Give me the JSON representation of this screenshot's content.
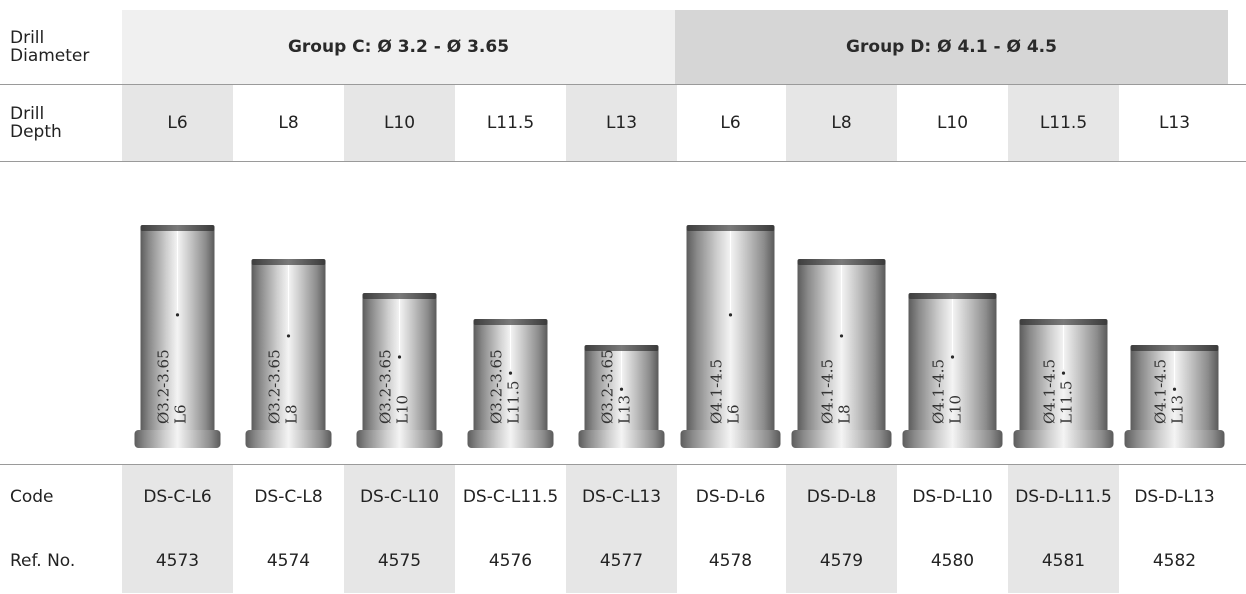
{
  "row_labels": {
    "diameter_line1": "Drill",
    "diameter_line2": "Diameter",
    "depth_line1": "Drill",
    "depth_line2": "Depth",
    "code": "Code",
    "ref": "Ref. No."
  },
  "groups": [
    {
      "label": "Group C:  Ø 3.2 - Ø 3.65"
    },
    {
      "label": "Group D:  Ø 4.1 - Ø 4.5"
    }
  ],
  "columns": [
    {
      "depth": "L6",
      "code": "DS-C-L6",
      "ref": "4573",
      "engrave_top": "Ø3.2-3.65",
      "engrave_bottom": "L6"
    },
    {
      "depth": "L8",
      "code": "DS-C-L8",
      "ref": "4574",
      "engrave_top": "Ø3.2-3.65",
      "engrave_bottom": "L8"
    },
    {
      "depth": "L10",
      "code": "DS-C-L10",
      "ref": "4575",
      "engrave_top": "Ø3.2-3.65",
      "engrave_bottom": "L10"
    },
    {
      "depth": "L11.5",
      "code": "DS-C-L11.5",
      "ref": "4576",
      "engrave_top": "Ø3.2-3.65",
      "engrave_bottom": "L11.5"
    },
    {
      "depth": "L13",
      "code": "DS-C-L13",
      "ref": "4577",
      "engrave_top": "Ø3.2-3.65",
      "engrave_bottom": "L13"
    },
    {
      "depth": "L6",
      "code": "DS-D-L6",
      "ref": "4578",
      "engrave_top": "Ø4.1-4.5",
      "engrave_bottom": "L6"
    },
    {
      "depth": "L8",
      "code": "DS-D-L8",
      "ref": "4579",
      "engrave_top": "Ø4.1-4.5",
      "engrave_bottom": "L8"
    },
    {
      "depth": "L10",
      "code": "DS-D-L10",
      "ref": "4580",
      "engrave_top": "Ø4.1-4.5",
      "engrave_bottom": "L10"
    },
    {
      "depth": "L11.5",
      "code": "DS-D-L11.5",
      "ref": "4581",
      "engrave_top": "Ø4.1-4.5",
      "engrave_bottom": "L11.5"
    },
    {
      "depth": "L13",
      "code": "DS-D-L13",
      "ref": "4582",
      "engrave_top": "Ø4.1-4.5",
      "engrave_bottom": "L13"
    }
  ],
  "colors": {
    "shade": "#e6e6e6",
    "group_c_bg": "#f0f0f0",
    "group_d_bg": "#d6d6d6",
    "rule": "#9a9a9a",
    "metal_dark": "#6e6e6e",
    "metal_light": "#f2f2f2"
  }
}
